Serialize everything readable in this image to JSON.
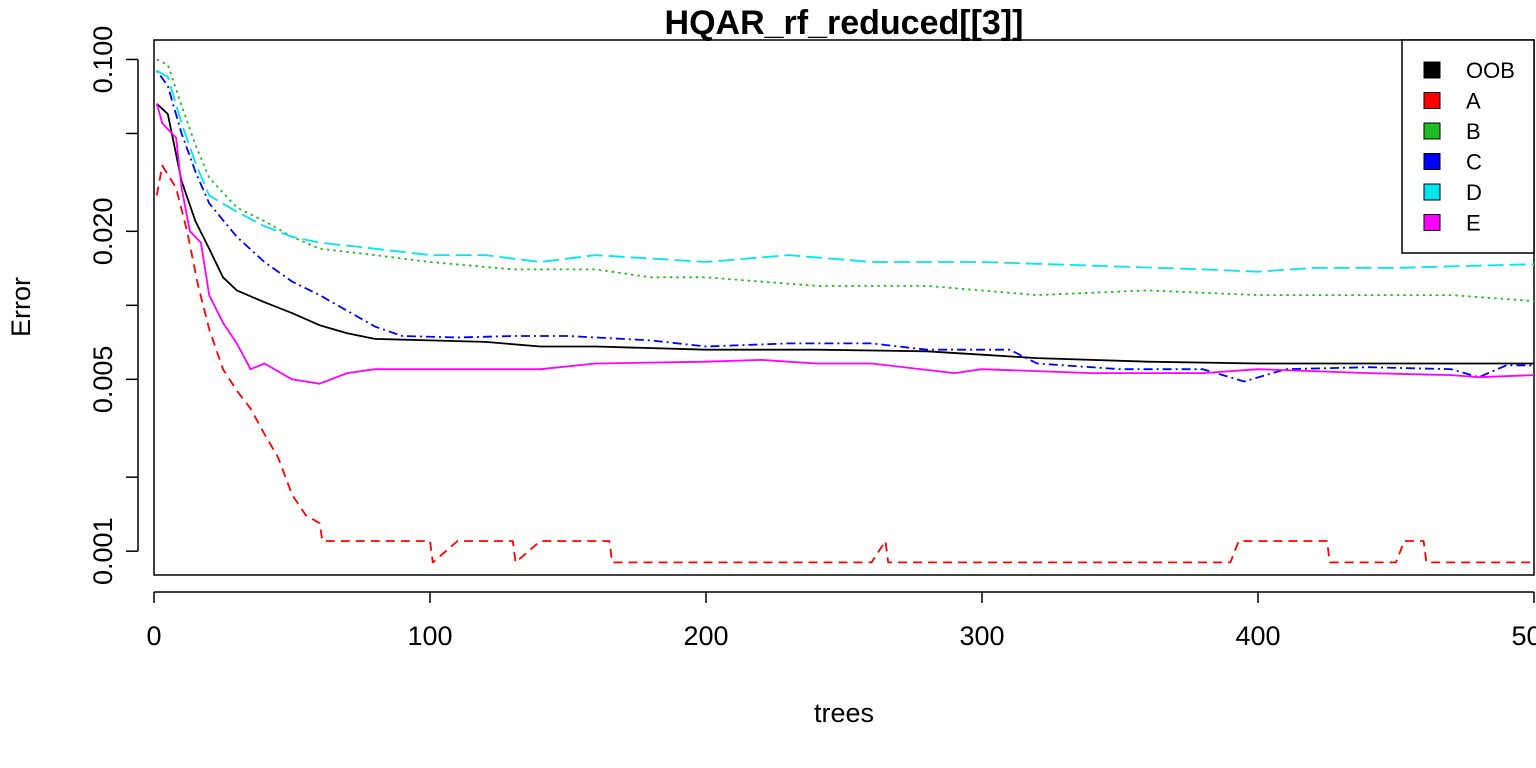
{
  "chart_data": {
    "type": "line",
    "title": "HQAR_rf_reduced[[3]]",
    "xlabel": "trees",
    "ylabel": "Error",
    "x_scale": "linear",
    "y_scale": "log",
    "xlim": [
      0,
      500
    ],
    "ylim": [
      0.0008,
      0.12
    ],
    "x_ticks": [
      0,
      100,
      200,
      300,
      400,
      500
    ],
    "x_tick_labels": [
      "0",
      "100",
      "200",
      "300",
      "400",
      "500"
    ],
    "y_ticks": [
      0.001,
      0.002,
      0.005,
      0.01,
      0.02,
      0.05,
      0.1
    ],
    "y_tick_labels": [
      "0.001",
      "",
      "0.005",
      "",
      "0.020",
      "",
      "0.100"
    ],
    "grid": false,
    "legend_position": "top-right",
    "legend_box_color": "#000000",
    "series": [
      {
        "name": "OOB",
        "color": "#000000",
        "dash": "solid",
        "points": [
          [
            1,
            0.066
          ],
          [
            5,
            0.06
          ],
          [
            10,
            0.032
          ],
          [
            15,
            0.022
          ],
          [
            20,
            0.017
          ],
          [
            25,
            0.013
          ],
          [
            30,
            0.0115
          ],
          [
            40,
            0.0103
          ],
          [
            50,
            0.0093
          ],
          [
            60,
            0.0083
          ],
          [
            70,
            0.0077
          ],
          [
            80,
            0.0073
          ],
          [
            100,
            0.0072
          ],
          [
            120,
            0.0071
          ],
          [
            140,
            0.0068
          ],
          [
            160,
            0.0068
          ],
          [
            200,
            0.0066
          ],
          [
            240,
            0.0066
          ],
          [
            280,
            0.0065
          ],
          [
            300,
            0.0063
          ],
          [
            320,
            0.0061
          ],
          [
            360,
            0.0059
          ],
          [
            400,
            0.0058
          ],
          [
            440,
            0.0058
          ],
          [
            470,
            0.0058
          ],
          [
            500,
            0.0058
          ]
        ]
      },
      {
        "name": "A",
        "color": "#ff0000",
        "dash": "dashed",
        "points": [
          [
            1,
            0.028
          ],
          [
            3,
            0.037
          ],
          [
            8,
            0.03
          ],
          [
            12,
            0.02
          ],
          [
            16,
            0.012
          ],
          [
            20,
            0.008
          ],
          [
            25,
            0.0055
          ],
          [
            30,
            0.0045
          ],
          [
            35,
            0.0038
          ],
          [
            40,
            0.003
          ],
          [
            45,
            0.0024
          ],
          [
            50,
            0.0017
          ],
          [
            55,
            0.0014
          ],
          [
            60,
            0.0013
          ],
          [
            61,
            0.0011
          ],
          [
            90,
            0.0011
          ],
          [
            100,
            0.0011
          ],
          [
            101,
            0.0009
          ],
          [
            110,
            0.0011
          ],
          [
            130,
            0.0011
          ],
          [
            131,
            0.0009
          ],
          [
            140,
            0.0011
          ],
          [
            165,
            0.0011
          ],
          [
            166,
            0.0009
          ],
          [
            260,
            0.0009
          ],
          [
            265,
            0.0011
          ],
          [
            266,
            0.0009
          ],
          [
            390,
            0.0009
          ],
          [
            393,
            0.0011
          ],
          [
            425,
            0.0011
          ],
          [
            426,
            0.0009
          ],
          [
            450,
            0.0009
          ],
          [
            453,
            0.0011
          ],
          [
            460,
            0.0011
          ],
          [
            461,
            0.0009
          ],
          [
            500,
            0.0009
          ]
        ]
      },
      {
        "name": "B",
        "color": "#22bb22",
        "dash": "dotted",
        "points": [
          [
            1,
            0.1
          ],
          [
            5,
            0.095
          ],
          [
            10,
            0.065
          ],
          [
            15,
            0.045
          ],
          [
            20,
            0.033
          ],
          [
            30,
            0.025
          ],
          [
            40,
            0.022
          ],
          [
            50,
            0.019
          ],
          [
            60,
            0.017
          ],
          [
            80,
            0.016
          ],
          [
            100,
            0.015
          ],
          [
            130,
            0.014
          ],
          [
            160,
            0.014
          ],
          [
            180,
            0.013
          ],
          [
            200,
            0.013
          ],
          [
            240,
            0.012
          ],
          [
            280,
            0.012
          ],
          [
            320,
            0.011
          ],
          [
            360,
            0.0115
          ],
          [
            400,
            0.011
          ],
          [
            440,
            0.011
          ],
          [
            470,
            0.011
          ],
          [
            500,
            0.0104
          ]
        ]
      },
      {
        "name": "C",
        "color": "#0000ff",
        "dash": "dotdash",
        "points": [
          [
            1,
            0.09
          ],
          [
            5,
            0.078
          ],
          [
            10,
            0.05
          ],
          [
            15,
            0.035
          ],
          [
            20,
            0.026
          ],
          [
            30,
            0.019
          ],
          [
            40,
            0.015
          ],
          [
            50,
            0.0125
          ],
          [
            60,
            0.011
          ],
          [
            70,
            0.0095
          ],
          [
            80,
            0.0082
          ],
          [
            90,
            0.0075
          ],
          [
            110,
            0.0074
          ],
          [
            130,
            0.0075
          ],
          [
            150,
            0.0075
          ],
          [
            180,
            0.0072
          ],
          [
            200,
            0.0068
          ],
          [
            230,
            0.007
          ],
          [
            260,
            0.007
          ],
          [
            280,
            0.0066
          ],
          [
            300,
            0.0066
          ],
          [
            310,
            0.0066
          ],
          [
            320,
            0.0058
          ],
          [
            350,
            0.0055
          ],
          [
            380,
            0.0055
          ],
          [
            395,
            0.0049
          ],
          [
            410,
            0.0055
          ],
          [
            440,
            0.0056
          ],
          [
            470,
            0.0055
          ],
          [
            480,
            0.0051
          ],
          [
            490,
            0.0057
          ],
          [
            500,
            0.0057
          ]
        ]
      },
      {
        "name": "D",
        "color": "#00e5ee",
        "dash": "longdash",
        "points": [
          [
            1,
            0.09
          ],
          [
            5,
            0.085
          ],
          [
            10,
            0.055
          ],
          [
            15,
            0.038
          ],
          [
            20,
            0.028
          ],
          [
            30,
            0.024
          ],
          [
            40,
            0.021
          ],
          [
            50,
            0.019
          ],
          [
            60,
            0.018
          ],
          [
            80,
            0.017
          ],
          [
            100,
            0.016
          ],
          [
            120,
            0.016
          ],
          [
            140,
            0.015
          ],
          [
            160,
            0.016
          ],
          [
            200,
            0.015
          ],
          [
            230,
            0.016
          ],
          [
            260,
            0.015
          ],
          [
            300,
            0.015
          ],
          [
            340,
            0.0145
          ],
          [
            380,
            0.014
          ],
          [
            400,
            0.0137
          ],
          [
            420,
            0.0142
          ],
          [
            450,
            0.0142
          ],
          [
            480,
            0.0145
          ],
          [
            500,
            0.0147
          ]
        ]
      },
      {
        "name": "E",
        "color": "#ff00ff",
        "dash": "solid",
        "points": [
          [
            1,
            0.066
          ],
          [
            3,
            0.055
          ],
          [
            8,
            0.048
          ],
          [
            10,
            0.03
          ],
          [
            13,
            0.02
          ],
          [
            17,
            0.018
          ],
          [
            20,
            0.011
          ],
          [
            25,
            0.0085
          ],
          [
            30,
            0.007
          ],
          [
            35,
            0.0055
          ],
          [
            40,
            0.0058
          ],
          [
            50,
            0.005
          ],
          [
            60,
            0.0048
          ],
          [
            70,
            0.0053
          ],
          [
            80,
            0.0055
          ],
          [
            100,
            0.0055
          ],
          [
            140,
            0.0055
          ],
          [
            160,
            0.0058
          ],
          [
            200,
            0.0059
          ],
          [
            220,
            0.006
          ],
          [
            240,
            0.0058
          ],
          [
            260,
            0.0058
          ],
          [
            290,
            0.0053
          ],
          [
            300,
            0.0055
          ],
          [
            340,
            0.0053
          ],
          [
            380,
            0.0053
          ],
          [
            400,
            0.0055
          ],
          [
            440,
            0.0053
          ],
          [
            470,
            0.0052
          ],
          [
            480,
            0.0051
          ],
          [
            500,
            0.0052
          ]
        ]
      }
    ]
  }
}
